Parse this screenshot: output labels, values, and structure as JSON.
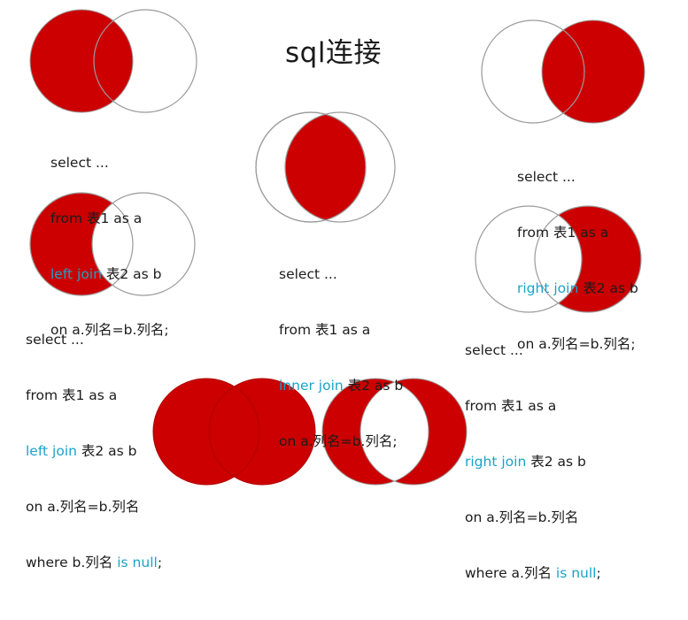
{
  "title": "sql连接",
  "colors": {
    "fill": "#cc0000",
    "outline": "#9a9a9a",
    "keyword": "#1aa3c8",
    "text": "#1c1c1c"
  },
  "diagrams": [
    {
      "id": "left-join",
      "highlight": "left circle",
      "lines": [
        {
          "pre": "select ...",
          "kw": "",
          "post": ""
        },
        {
          "pre": "from 表1 as a",
          "kw": "",
          "post": ""
        },
        {
          "pre": "",
          "kw": "left join",
          "post": " 表2 as b"
        },
        {
          "pre": "on a.列名=b.列名;",
          "kw": "",
          "post": ""
        }
      ]
    },
    {
      "id": "inner-join",
      "highlight": "intersection",
      "lines": [
        {
          "pre": "select ...",
          "kw": "",
          "post": ""
        },
        {
          "pre": "from 表1 as a",
          "kw": "",
          "post": ""
        },
        {
          "pre": "",
          "kw": "inner join",
          "post": " 表2 as b"
        },
        {
          "pre": "on a.列名=b.列名;",
          "kw": "",
          "post": ""
        }
      ]
    },
    {
      "id": "right-join",
      "highlight": "right circle",
      "lines": [
        {
          "pre": "select ...",
          "kw": "",
          "post": ""
        },
        {
          "pre": "from 表1 as a",
          "kw": "",
          "post": ""
        },
        {
          "pre": "",
          "kw": "right join",
          "post": " 表2 as b"
        },
        {
          "pre": "on a.列名=b.列名;",
          "kw": "",
          "post": ""
        }
      ]
    },
    {
      "id": "left-only",
      "highlight": "left circle minus intersection",
      "lines": [
        {
          "pre": "select ...",
          "kw": "",
          "post": ""
        },
        {
          "pre": "from 表1 as a",
          "kw": "",
          "post": ""
        },
        {
          "pre": "",
          "kw": "left join",
          "post": " 表2 as b"
        },
        {
          "pre": "on a.列名=b.列名",
          "kw": "",
          "post": ""
        },
        {
          "pre": "where b.列名 ",
          "kw": "is null",
          "post": ";"
        }
      ]
    },
    {
      "id": "right-only",
      "highlight": "right circle minus intersection",
      "lines": [
        {
          "pre": "select ...",
          "kw": "",
          "post": ""
        },
        {
          "pre": "from 表1 as a",
          "kw": "",
          "post": ""
        },
        {
          "pre": "",
          "kw": "right join",
          "post": " 表2 as b"
        },
        {
          "pre": "on a.列名=b.列名",
          "kw": "",
          "post": ""
        },
        {
          "pre": "where a.列名 ",
          "kw": "is null",
          "post": ";"
        }
      ]
    },
    {
      "id": "full-join",
      "highlight": "both circles",
      "lines": []
    },
    {
      "id": "full-minus-intersection",
      "highlight": "both circles minus intersection",
      "lines": []
    }
  ]
}
